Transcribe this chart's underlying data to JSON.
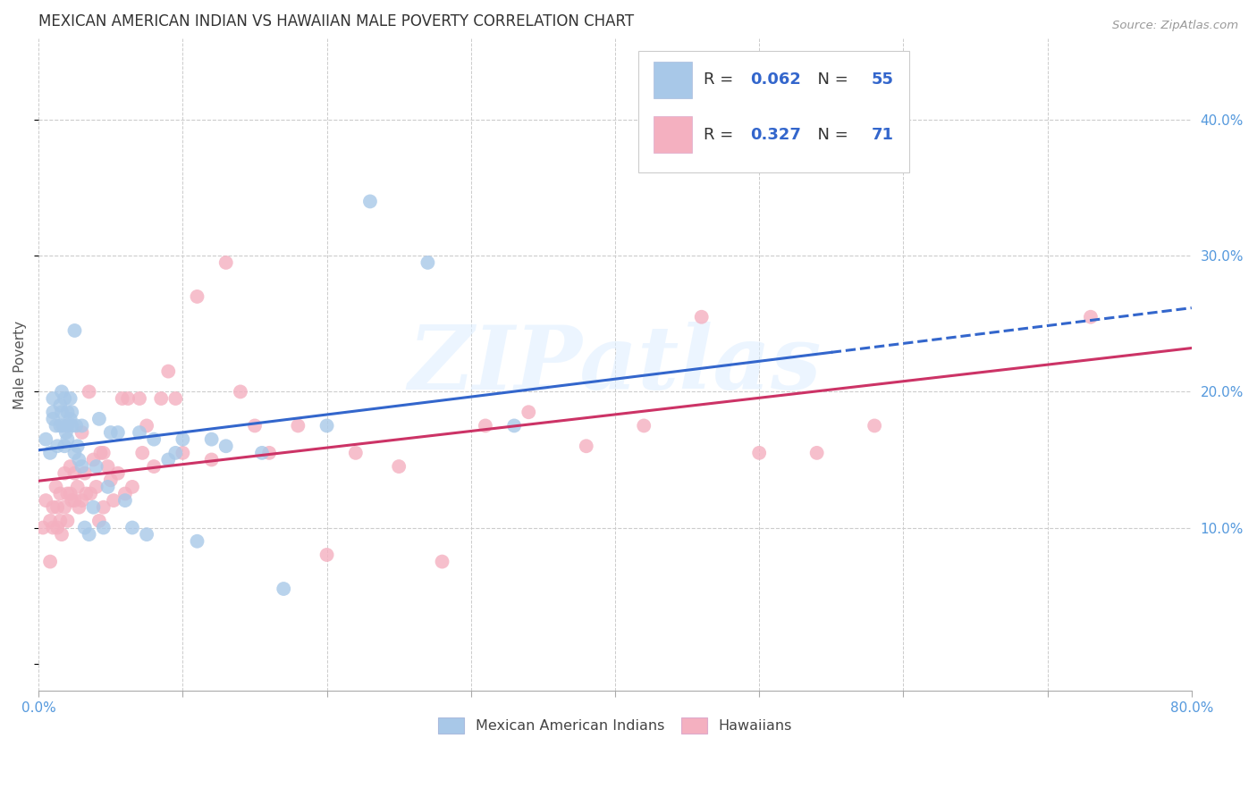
{
  "title": "MEXICAN AMERICAN INDIAN VS HAWAIIAN MALE POVERTY CORRELATION CHART",
  "source": "Source: ZipAtlas.com",
  "ylabel": "Male Poverty",
  "right_yticks": [
    "40.0%",
    "30.0%",
    "20.0%",
    "10.0%"
  ],
  "right_ytick_vals": [
    0.4,
    0.3,
    0.2,
    0.1
  ],
  "xlim": [
    0.0,
    0.8
  ],
  "ylim": [
    -0.02,
    0.46
  ],
  "blue_R": "0.062",
  "blue_N": "55",
  "pink_R": "0.327",
  "pink_N": "71",
  "blue_color": "#a8c8e8",
  "pink_color": "#f4b0c0",
  "blue_line_color": "#3366cc",
  "pink_line_color": "#cc3366",
  "blue_line_solid_end": 0.55,
  "blue_line_dash_start": 0.55,
  "blue_line_end": 0.8,
  "watermark_text": "ZIPatlas",
  "blue_points_x": [
    0.005,
    0.008,
    0.01,
    0.01,
    0.01,
    0.012,
    0.013,
    0.015,
    0.015,
    0.016,
    0.016,
    0.017,
    0.018,
    0.018,
    0.019,
    0.02,
    0.02,
    0.02,
    0.022,
    0.022,
    0.023,
    0.023,
    0.025,
    0.025,
    0.026,
    0.027,
    0.028,
    0.03,
    0.03,
    0.032,
    0.035,
    0.038,
    0.04,
    0.042,
    0.045,
    0.048,
    0.05,
    0.055,
    0.06,
    0.065,
    0.07,
    0.075,
    0.08,
    0.09,
    0.095,
    0.1,
    0.11,
    0.12,
    0.13,
    0.155,
    0.17,
    0.2,
    0.23,
    0.27,
    0.33
  ],
  "blue_points_y": [
    0.165,
    0.155,
    0.18,
    0.195,
    0.185,
    0.175,
    0.16,
    0.19,
    0.175,
    0.2,
    0.185,
    0.175,
    0.195,
    0.16,
    0.17,
    0.185,
    0.165,
    0.175,
    0.195,
    0.18,
    0.175,
    0.185,
    0.245,
    0.155,
    0.175,
    0.16,
    0.15,
    0.145,
    0.175,
    0.1,
    0.095,
    0.115,
    0.145,
    0.18,
    0.1,
    0.13,
    0.17,
    0.17,
    0.12,
    0.1,
    0.17,
    0.095,
    0.165,
    0.15,
    0.155,
    0.165,
    0.09,
    0.165,
    0.16,
    0.155,
    0.055,
    0.175,
    0.34,
    0.295,
    0.175
  ],
  "pink_points_x": [
    0.003,
    0.005,
    0.008,
    0.008,
    0.01,
    0.01,
    0.012,
    0.013,
    0.013,
    0.015,
    0.015,
    0.016,
    0.018,
    0.018,
    0.02,
    0.02,
    0.022,
    0.022,
    0.023,
    0.025,
    0.025,
    0.027,
    0.028,
    0.03,
    0.03,
    0.032,
    0.033,
    0.035,
    0.036,
    0.038,
    0.04,
    0.042,
    0.043,
    0.045,
    0.045,
    0.048,
    0.05,
    0.052,
    0.055,
    0.058,
    0.06,
    0.062,
    0.065,
    0.07,
    0.072,
    0.075,
    0.08,
    0.085,
    0.09,
    0.095,
    0.1,
    0.11,
    0.12,
    0.13,
    0.14,
    0.15,
    0.16,
    0.18,
    0.2,
    0.22,
    0.25,
    0.28,
    0.31,
    0.34,
    0.38,
    0.42,
    0.46,
    0.5,
    0.54,
    0.58,
    0.73
  ],
  "pink_points_y": [
    0.1,
    0.12,
    0.105,
    0.075,
    0.115,
    0.1,
    0.13,
    0.115,
    0.1,
    0.125,
    0.105,
    0.095,
    0.14,
    0.115,
    0.125,
    0.105,
    0.145,
    0.125,
    0.12,
    0.14,
    0.12,
    0.13,
    0.115,
    0.12,
    0.17,
    0.14,
    0.125,
    0.2,
    0.125,
    0.15,
    0.13,
    0.105,
    0.155,
    0.115,
    0.155,
    0.145,
    0.135,
    0.12,
    0.14,
    0.195,
    0.125,
    0.195,
    0.13,
    0.195,
    0.155,
    0.175,
    0.145,
    0.195,
    0.215,
    0.195,
    0.155,
    0.27,
    0.15,
    0.295,
    0.2,
    0.175,
    0.155,
    0.175,
    0.08,
    0.155,
    0.145,
    0.075,
    0.175,
    0.185,
    0.16,
    0.175,
    0.255,
    0.155,
    0.155,
    0.175,
    0.255
  ],
  "bg_color": "#ffffff",
  "grid_color": "#cccccc",
  "title_color": "#333333",
  "right_axis_color": "#5599dd",
  "legend_text_color_blue": "#3366cc",
  "legend_text_color_pink": "#cc3366",
  "xtick_vals": [
    0.0,
    0.1,
    0.2,
    0.3,
    0.4,
    0.5,
    0.6,
    0.7,
    0.8
  ],
  "xtick_labels_show": [
    "0.0%",
    "",
    "",
    "",
    "",
    "",
    "",
    "",
    "80.0%"
  ]
}
